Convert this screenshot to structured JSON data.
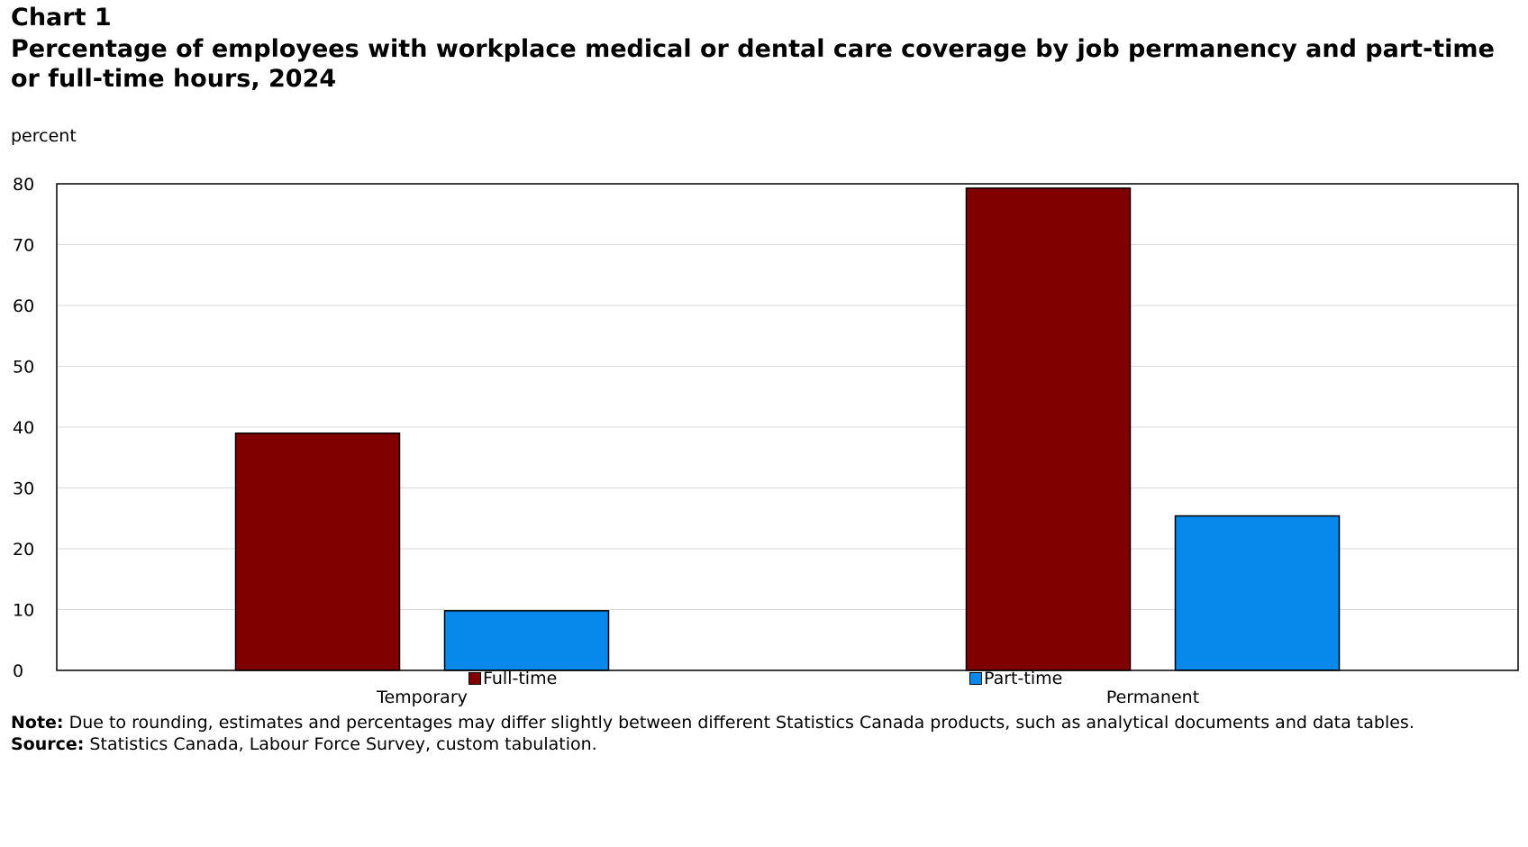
{
  "header": {
    "chart_number": "Chart 1",
    "title": "Percentage of employees with workplace medical or dental care coverage by job permanency and part-time or full-time hours, 2024"
  },
  "axis": {
    "y_unit": "percent"
  },
  "legend": {
    "full_time_label": "Full-time",
    "part_time_label": "Part-time"
  },
  "footer": {
    "note_label": "Note:",
    "note_text": " Due to rounding, estimates and percentages may differ slightly between different Statistics Canada products, such as analytical documents and data tables.",
    "source_label": "Source:",
    "source_text": " Statistics Canada, Labour Force Survey, custom tabulation."
  },
  "colors": {
    "full_time": "#800000",
    "part_time": "#0788EB",
    "grid": "#d9d9d9",
    "frame": "#000000"
  },
  "chart_data": {
    "type": "bar",
    "title": "Percentage of employees with workplace medical or dental care coverage by job permanency and part-time or full-time hours, 2024",
    "xlabel": "",
    "ylabel": "percent",
    "categories": [
      "Temporary",
      "Permanent"
    ],
    "series": [
      {
        "name": "Full-time",
        "values": [
          39,
          79.3
        ]
      },
      {
        "name": "Part-time",
        "values": [
          9.8,
          25.4
        ]
      }
    ],
    "ylim": [
      0,
      80
    ],
    "yticks": [
      0,
      10,
      20,
      30,
      40,
      50,
      60,
      70,
      80
    ],
    "grid": true,
    "legend_position": "bottom"
  }
}
